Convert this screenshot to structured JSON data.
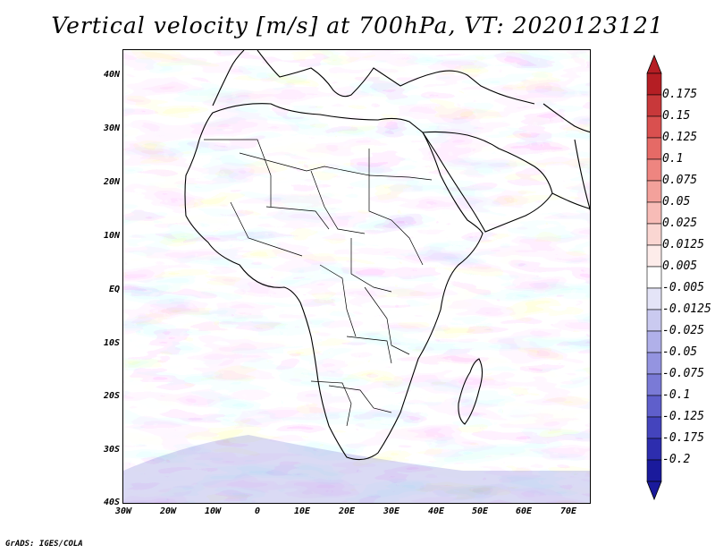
{
  "title": "Vertical velocity [m/s] at 700hPa, VT: 2020123121",
  "footer": "GrADS: IGES/COLA",
  "lat_labels": [
    "40N",
    "30N",
    "20N",
    "10N",
    "EQ",
    "10S",
    "20S",
    "30S",
    "40S"
  ],
  "lon_labels": [
    "30W",
    "20W",
    "10W",
    "0",
    "10E",
    "20E",
    "30E",
    "40E",
    "50E",
    "60E",
    "70E"
  ],
  "colorbar": {
    "levels": [
      "0.175",
      "0.15",
      "0.125",
      "0.1",
      "0.075",
      "0.05",
      "0.025",
      "0.0125",
      "0.005",
      "-0.005",
      "-0.0125",
      "-0.025",
      "-0.05",
      "-0.075",
      "-0.1",
      "-0.125",
      "-0.175",
      "-0.2"
    ],
    "colors": [
      "#b51e24",
      "#c8383a",
      "#d9504f",
      "#e56a66",
      "#ee8580",
      "#f3a19b",
      "#f7bcb7",
      "#fad6d2",
      "#fdecea",
      "#ffffff",
      "#e4e4f7",
      "#cacaf0",
      "#b0b0e9",
      "#9494e0",
      "#7a7ad6",
      "#5f5fcb",
      "#4444bd",
      "#2d2dae",
      "#1a1a9c"
    ]
  }
}
